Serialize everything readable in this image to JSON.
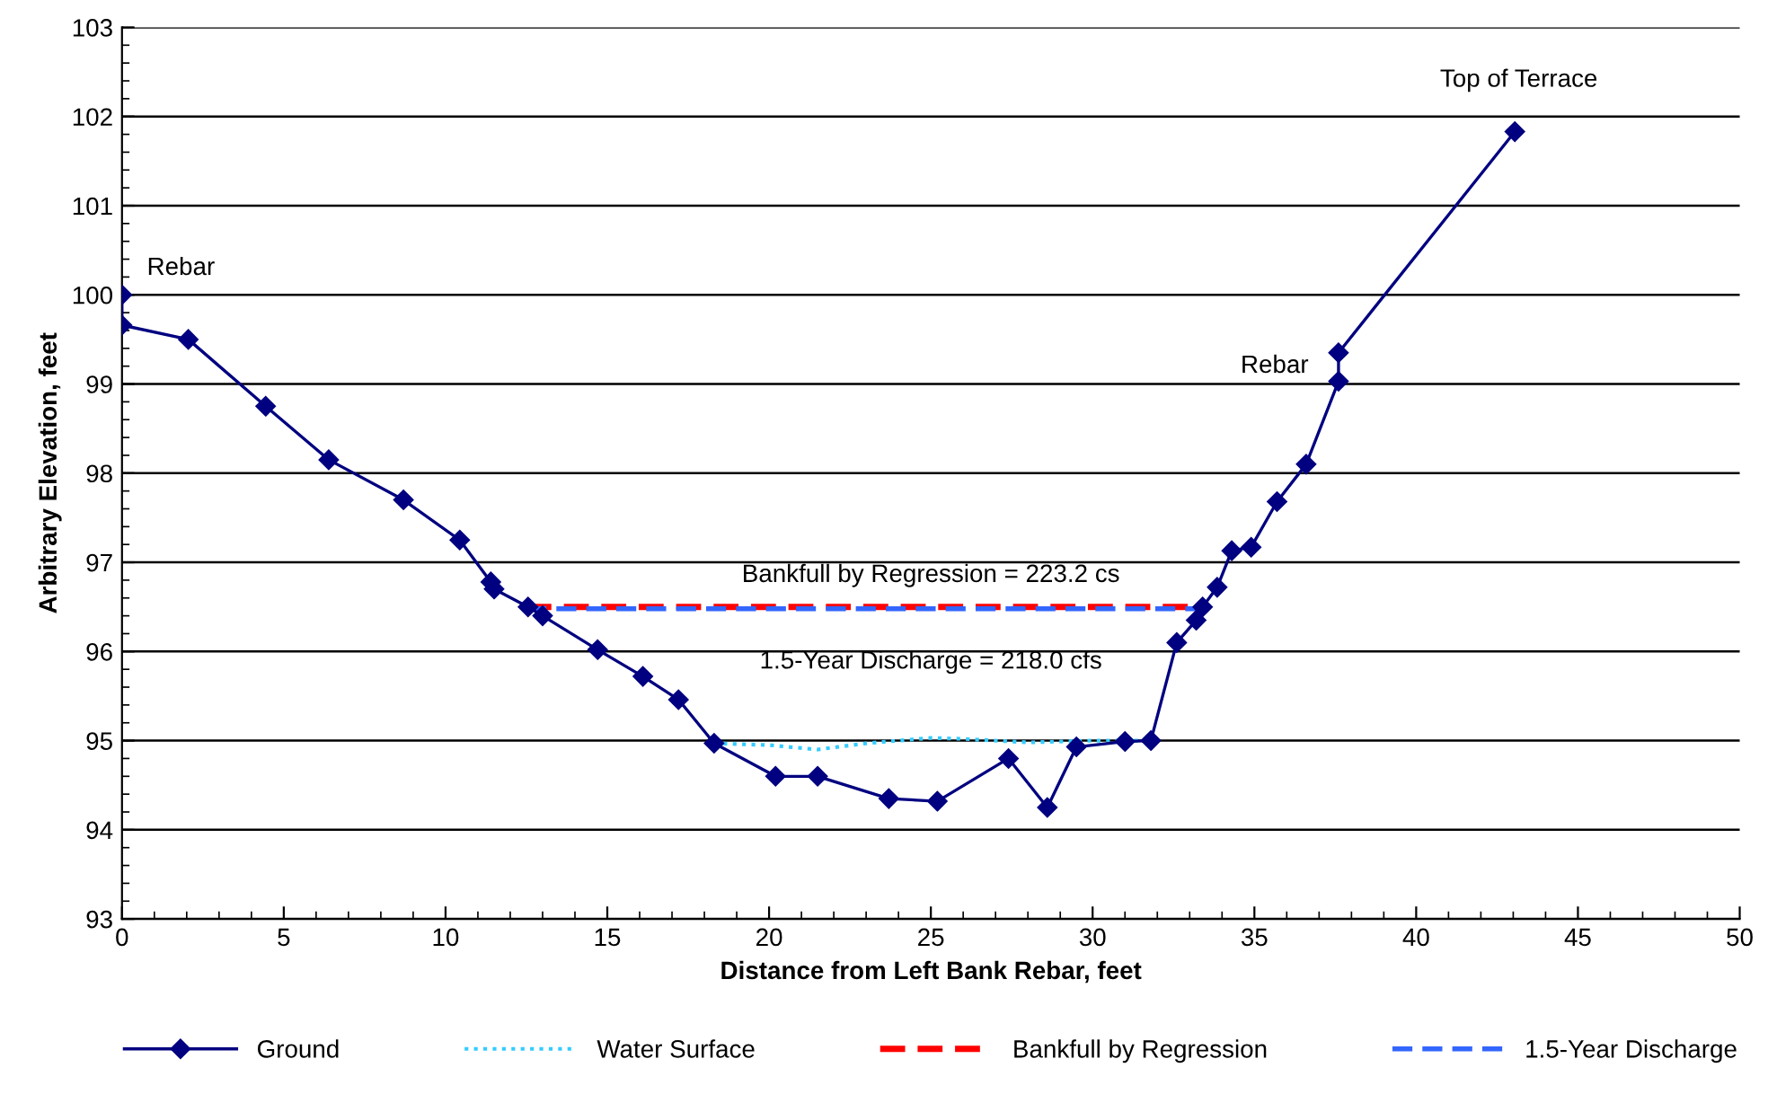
{
  "chart_data": {
    "type": "line",
    "xlabel": "Distance from Left Bank Rebar, feet",
    "ylabel": "Arbitrary Elevation, feet",
    "xlim": [
      0,
      50
    ],
    "xticks": [
      0,
      5,
      10,
      15,
      20,
      25,
      30,
      35,
      40,
      45,
      50
    ],
    "ylim": [
      93,
      103
    ],
    "yticks": [
      93,
      94,
      95,
      96,
      97,
      98,
      99,
      100,
      101,
      102,
      103
    ],
    "grid": "y",
    "legend": "bottom",
    "series": [
      {
        "name": "Ground",
        "color": "#000080",
        "marker": "diamond",
        "line_style": "solid",
        "x": [
          0,
          0,
          2.05,
          4.44,
          6.39,
          8.7,
          10.44,
          11.4,
          11.5,
          12.55,
          13.0,
          14.7,
          16.1,
          17.2,
          18.3,
          20.2,
          21.5,
          23.7,
          25.2,
          27.4,
          28.6,
          29.5,
          31.0,
          31.8,
          32.6,
          33.2,
          33.4,
          33.85,
          34.3,
          34.9,
          35.7,
          36.6,
          37.6,
          37.6,
          43.05
        ],
        "values": [
          100.0,
          99.66,
          99.5,
          98.75,
          98.15,
          97.7,
          97.25,
          96.78,
          96.7,
          96.5,
          96.4,
          96.02,
          95.72,
          95.46,
          94.97,
          94.6,
          94.6,
          94.35,
          94.32,
          94.8,
          94.25,
          94.93,
          94.99,
          95.0,
          96.1,
          96.35,
          96.5,
          96.72,
          97.13,
          97.17,
          97.68,
          98.1,
          99.03,
          99.35,
          101.83
        ]
      },
      {
        "name": "Water Surface",
        "color": "#33ccff",
        "marker": "none",
        "line_style": "dotted",
        "x": [
          18.3,
          20,
          21.5,
          23,
          25,
          26,
          28,
          30,
          31.8
        ],
        "values": [
          94.97,
          94.95,
          94.9,
          94.97,
          95.03,
          95.02,
          94.98,
          95.0,
          95.0
        ]
      },
      {
        "name": "Bankfull by Regression",
        "color": "#ff0000",
        "marker": "none",
        "line_style": "dashed",
        "x": [
          12.5,
          33.4
        ],
        "values": [
          96.5,
          96.5
        ]
      },
      {
        "name": "1.5-Year Discharge",
        "color": "#3366ff",
        "marker": "none",
        "line_style": "dashed",
        "x": [
          12.5,
          33.4
        ],
        "values": [
          96.48,
          96.48
        ]
      }
    ],
    "annotations": [
      {
        "text": "Rebar",
        "x": 0,
        "y": 100.0
      },
      {
        "text": "Rebar",
        "x": 37.6,
        "y": 99.35
      },
      {
        "text": "Top of Terrace",
        "x": 43.05,
        "y": 101.83
      },
      {
        "text": "Bankfull by Regression = 223.2 cs",
        "x": 25,
        "y": 96.5
      },
      {
        "text": "1.5-Year Discharge = 218.0 cfs",
        "x": 25,
        "y": 96.48
      }
    ]
  }
}
